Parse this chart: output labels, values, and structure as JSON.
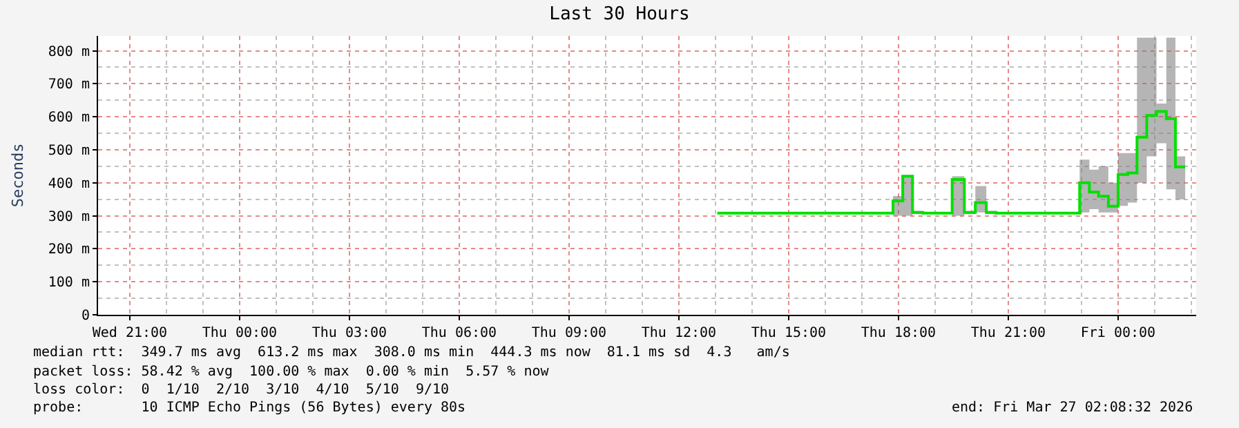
{
  "chart_data": {
    "type": "step",
    "title": "Last 30 Hours",
    "ylabel": "Seconds",
    "x": [
      "2026-03-26T13:03",
      "2026-03-26T17:51",
      "2026-03-26T18:07",
      "2026-03-26T18:23",
      "2026-03-26T18:40",
      "2026-03-26T19:28",
      "2026-03-26T19:48",
      "2026-03-26T20:06",
      "2026-03-26T20:24",
      "2026-03-26T20:40",
      "2026-03-26T22:57",
      "2026-03-26T23:13",
      "2026-03-26T23:28",
      "2026-03-26T23:44",
      "2026-03-27T00:00",
      "2026-03-27T00:16",
      "2026-03-27T00:31",
      "2026-03-27T00:47",
      "2026-03-27T01:03",
      "2026-03-27T01:19",
      "2026-03-27T01:34",
      "2026-03-27T01:50"
    ],
    "series": [
      {
        "color": "#00e000",
        "values": [
          308,
          345,
          420,
          310,
          308,
          410,
          310,
          340,
          310,
          308,
          400,
          372,
          359,
          329,
          425,
          430,
          538,
          604,
          616,
          594,
          448,
          448
        ],
        "lower": [
          308,
          300,
          300,
          305,
          308,
          300,
          305,
          310,
          305,
          308,
          310,
          320,
          310,
          310,
          330,
          340,
          400,
          480,
          520,
          380,
          350,
          350
        ],
        "upper": [
          308,
          360,
          420,
          315,
          308,
          420,
          315,
          390,
          315,
          308,
          470,
          440,
          450,
          400,
          490,
          490,
          840,
          840,
          640,
          840,
          480,
          480
        ]
      }
    ],
    "xlim": [
      "2026-03-25T20:08",
      "2026-03-27T02:08"
    ],
    "xticks": [
      {
        "value": "2026-03-25T21:00",
        "label": "Wed 21:00"
      },
      {
        "value": "2026-03-26T00:00",
        "label": "Thu 00:00"
      },
      {
        "value": "2026-03-26T03:00",
        "label": "Thu 03:00"
      },
      {
        "value": "2026-03-26T06:00",
        "label": "Thu 06:00"
      },
      {
        "value": "2026-03-26T09:00",
        "label": "Thu 09:00"
      },
      {
        "value": "2026-03-26T12:00",
        "label": "Thu 12:00"
      },
      {
        "value": "2026-03-26T15:00",
        "label": "Thu 15:00"
      },
      {
        "value": "2026-03-26T18:00",
        "label": "Thu 18:00"
      },
      {
        "value": "2026-03-26T21:00",
        "label": "Thu 21:00"
      },
      {
        "value": "2026-03-27T00:00",
        "label": "Fri 00:00"
      }
    ],
    "ylim": [
      0,
      845
    ],
    "yticks": [
      0,
      {
        "value": 100,
        "label": "100 m"
      },
      {
        "value": 200,
        "label": "200 m"
      },
      {
        "value": 300,
        "label": "300 m"
      },
      {
        "value": 400,
        "label": "400 m"
      },
      {
        "value": 500,
        "label": "500 m"
      },
      {
        "value": 600,
        "label": "600 m"
      },
      {
        "value": 700,
        "label": "700 m"
      },
      {
        "value": 800,
        "label": "800 m"
      }
    ],
    "grid": true,
    "marker": "none",
    "line_style": "solid",
    "annotations": [
      "median rtt:  349.7 ms avg  613.2 ms max  308.0 ms min  444.3 ms now  81.1 ms sd  4.3   am/s",
      "packet loss: 58.42 % avg  100.00 % max  0.00 % min  5.57 % now",
      "loss color:  0  1/10  2/10  3/10  4/10  5/10  9/10",
      "probe:       10 ICMP Echo Pings (56 Bytes) every 80s",
      "end: Fri Mar 27 02:08:32 2026"
    ]
  }
}
